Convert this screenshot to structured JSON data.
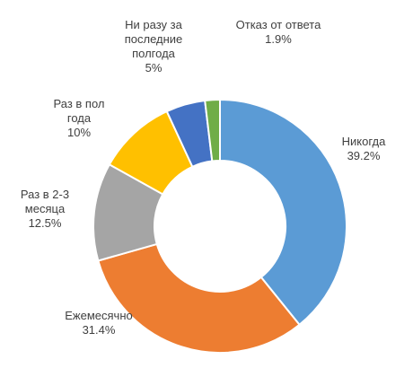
{
  "chart_data": {
    "type": "pie",
    "variant": "donut",
    "title": "",
    "slices": [
      {
        "label_lines": [
          "Никогда"
        ],
        "value": 39.2,
        "value_label": "39.2%",
        "color": "#5B9BD5"
      },
      {
        "label_lines": [
          "Ежемесячно"
        ],
        "value": 31.4,
        "value_label": "31.4%",
        "color": "#ED7D31"
      },
      {
        "label_lines": [
          "Раз в 2-3",
          "месяца"
        ],
        "value": 12.5,
        "value_label": "12.5%",
        "color": "#A5A5A5"
      },
      {
        "label_lines": [
          "Раз в пол",
          "года"
        ],
        "value": 10,
        "value_label": "10%",
        "color": "#FFC000"
      },
      {
        "label_lines": [
          "Ни разу за",
          "последние",
          "полгода"
        ],
        "value": 5,
        "value_label": "5%",
        "color": "#4472C4"
      },
      {
        "label_lines": [
          "Отказ от ответа"
        ],
        "value": 1.9,
        "value_label": "1.9%",
        "color": "#70AD47"
      }
    ],
    "start": "12 o'clock",
    "direction": "clockwise",
    "legend": "none",
    "labels": "outside, category name and value"
  }
}
